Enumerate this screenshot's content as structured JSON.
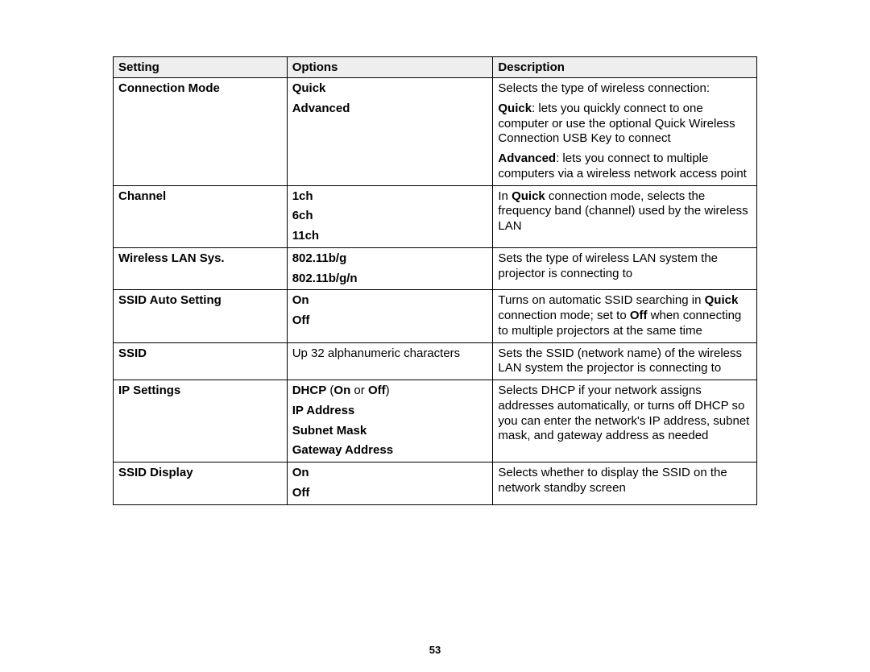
{
  "table": {
    "headers": {
      "c1": "Setting",
      "c2": "Options",
      "c3": "Description"
    },
    "rows": [
      {
        "setting": "Connection Mode",
        "options": {
          "opt1": "Quick",
          "opt2": "Advanced"
        },
        "desc": {
          "p1": "Selects the type of wireless connection:",
          "p2a": "Quick",
          "p2b": ": lets you quickly connect to one computer or use the optional Quick Wireless Connection USB Key to connect",
          "p3a": "Advanced",
          "p3b": ": lets you connect to multiple computers via a wireless network access point"
        }
      },
      {
        "setting": "Channel",
        "options": {
          "opt1": "1ch",
          "opt2": "6ch",
          "opt3": "11ch"
        },
        "desc": {
          "a": "In ",
          "b": "Quick",
          "c": " connection mode, selects the frequency band (channel) used by the wireless LAN"
        }
      },
      {
        "setting": "Wireless LAN Sys.",
        "options": {
          "opt1": "802.11b/g",
          "opt2": "802.11b/g/n"
        },
        "desc": {
          "text": "Sets the type of wireless LAN system the projector is connecting to"
        }
      },
      {
        "setting": "SSID Auto Setting",
        "options": {
          "opt1": "On",
          "opt2": "Off"
        },
        "desc": {
          "a": "Turns on automatic SSID searching in ",
          "b": "Quick",
          "c": " connection mode; set to ",
          "d": "Off",
          "e": " when connecting to multiple projectors at the same time"
        }
      },
      {
        "setting": "SSID",
        "options": {
          "text": "Up 32 alphanumeric characters"
        },
        "desc": {
          "text": "Sets the SSID (network name) of the wireless LAN system the projector is connecting to"
        }
      },
      {
        "setting": "IP Settings",
        "options": {
          "l1a": "DHCP",
          "l1b": " (",
          "l1c": "On",
          "l1d": " or ",
          "l1e": "Off",
          "l1f": ")",
          "l2": "IP Address",
          "l3": "Subnet Mask",
          "l4": "Gateway Address"
        },
        "desc": {
          "text": "Selects DHCP if your network assigns addresses automatically, or turns off DHCP so you can enter the network's IP address, subnet mask, and gateway address as needed"
        }
      },
      {
        "setting": "SSID Display",
        "options": {
          "opt1": "On",
          "opt2": "Off"
        },
        "desc": {
          "text": "Selects whether to display the SSID on the network standby screen"
        }
      }
    ]
  },
  "page_number": "53"
}
